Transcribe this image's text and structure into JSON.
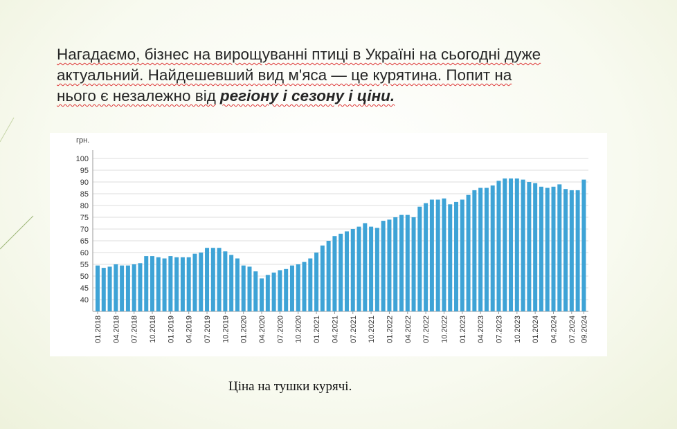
{
  "slide": {
    "lines": [
      "Нагадаємо, бізнес на вирощуванні птиці в Україні на сьогодні дуже",
      "актуальний. Найдешевший вид м'яса — це курятина. Попит на",
      "нього є незалежно від"
    ],
    "emphasis": "регіону і сезону і ціни.",
    "caption": "Ціна на тушки курячі."
  },
  "chart_data": {
    "type": "bar",
    "y_label": "грн.",
    "color": "#3ea3d6",
    "grid": true,
    "categories": [
      "01.2018",
      null,
      null,
      "04.2018",
      null,
      null,
      "07.2018",
      null,
      null,
      "10.2018",
      null,
      null,
      "01.2019",
      null,
      null,
      "04.2019",
      null,
      null,
      "07.2019",
      null,
      null,
      "10.2019",
      null,
      null,
      "01.2020",
      null,
      null,
      "04.2020",
      null,
      null,
      "07.2020",
      null,
      null,
      "10.2020",
      null,
      null,
      "01.2021",
      null,
      null,
      "04.2021",
      null,
      null,
      "07.2021",
      null,
      null,
      "10.2021",
      null,
      null,
      "01.2022",
      null,
      null,
      "04.2022",
      null,
      null,
      "07.2022",
      null,
      null,
      "10.2022",
      null,
      null,
      "01.2023",
      null,
      null,
      "04.2023",
      null,
      null,
      "07.2023",
      null,
      null,
      "10.2023",
      null,
      null,
      "01.2024",
      null,
      null,
      "04.2024",
      null,
      null,
      "07.2024",
      null,
      "09.2024"
    ],
    "values": [
      54.5,
      53.5,
      54,
      55,
      54.5,
      54.5,
      55,
      55.5,
      58.5,
      58.5,
      58,
      57.5,
      58.5,
      58,
      58,
      58,
      59.5,
      60,
      62,
      62,
      62,
      60.5,
      59,
      57.5,
      54.5,
      54,
      52,
      49,
      50.5,
      51.5,
      52.5,
      53,
      54.5,
      55,
      56,
      57.5,
      60,
      63,
      65,
      67,
      68,
      69,
      70,
      71,
      72.5,
      71,
      70.5,
      73.5,
      74,
      75,
      76,
      76,
      75,
      79.5,
      81,
      82.5,
      82.5,
      83,
      80.5,
      81.5,
      82.5,
      84.5,
      86.5,
      87.5,
      87.5,
      88.5,
      90.5,
      91.5,
      91.5,
      91.5,
      91,
      90,
      89.5,
      88,
      87.5,
      88,
      89,
      87,
      86.5,
      86.5,
      91
    ],
    "ylim": [
      35,
      100
    ],
    "yticks": [
      40,
      45,
      50,
      55,
      60,
      65,
      70,
      75,
      80,
      85,
      90,
      95,
      100
    ]
  }
}
